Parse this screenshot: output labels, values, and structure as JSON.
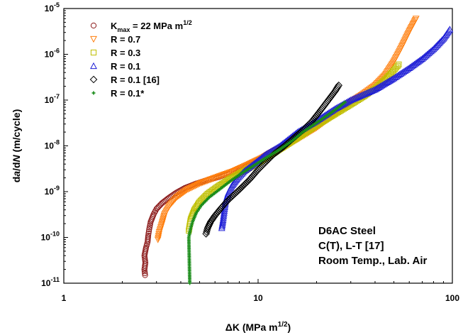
{
  "chart_data": {
    "type": "scatter",
    "x_scale": "log",
    "y_scale": "log",
    "xlim": [
      1,
      100
    ],
    "ylim": [
      1e-11,
      1e-05
    ],
    "grid": false,
    "legend_placement": "top-left",
    "xlabel": {
      "prefix": "ΔK (MPa m",
      "sup": "1/2",
      "suffix": ")"
    },
    "ylabel": {
      "parts": [
        {
          "t": "d",
          "i": false
        },
        {
          "t": "a",
          "i": true
        },
        {
          "t": "/d",
          "i": false
        },
        {
          "t": "N",
          "i": true
        },
        {
          "t": " (m/cycle)",
          "i": false
        }
      ]
    },
    "x_ticks": [
      {
        "value": 1,
        "label": "1"
      },
      {
        "value": 10,
        "label": "10"
      },
      {
        "value": 100,
        "label": "100"
      }
    ],
    "y_ticks": [
      {
        "value": 1e-11,
        "base": "10",
        "exp": "-11"
      },
      {
        "value": 1e-10,
        "base": "10",
        "exp": "-10"
      },
      {
        "value": 1e-09,
        "base": "10",
        "exp": "-9"
      },
      {
        "value": 1e-08,
        "base": "10",
        "exp": "-8"
      },
      {
        "value": 1e-07,
        "base": "10",
        "exp": "-7"
      },
      {
        "value": 1e-06,
        "base": "10",
        "exp": "-6"
      },
      {
        "value": 1e-05,
        "base": "10",
        "exp": "-5"
      }
    ],
    "annotation": [
      "D6AC Steel",
      "C(T), L-T [17]",
      "Room Temp., Lab. Air"
    ],
    "series": [
      {
        "name": "K_max = 22 MPa m^1/2",
        "label_main": "K",
        "label_sub": "max",
        "label_mid": " = 22 MPa m",
        "label_sup": "1/2",
        "marker": "circle",
        "color": "#8b1a1a",
        "points": [
          [
            2.62,
            1.5e-11
          ],
          [
            2.6,
            2e-11
          ],
          [
            2.63,
            2.8e-11
          ],
          [
            2.6,
            4e-11
          ],
          [
            2.65,
            6e-11
          ],
          [
            2.7,
            8e-11
          ],
          [
            2.72,
            1.1e-10
          ],
          [
            2.75,
            1.5e-10
          ],
          [
            2.8,
            2.2e-10
          ],
          [
            2.9,
            3.2e-10
          ],
          [
            3.0,
            4.2e-10
          ],
          [
            3.2,
            5.6e-10
          ],
          [
            3.5,
            7.5e-10
          ],
          [
            3.8,
            9.5e-10
          ],
          [
            4.2,
            1.2e-09
          ],
          [
            4.8,
            1.5e-09
          ],
          [
            5.5,
            1.8e-09
          ],
          [
            6.3,
            2.1e-09
          ],
          [
            7.2,
            2.6e-09
          ],
          [
            8.0,
            3e-09
          ],
          [
            9.0,
            4e-09
          ],
          [
            10.0,
            5e-09
          ],
          [
            11.0,
            6.5e-09
          ],
          [
            12.0,
            8e-09
          ],
          [
            13.5,
            1e-08
          ]
        ]
      },
      {
        "name": "R = 0.7",
        "label_main": "R = 0.7",
        "marker": "triangle-down",
        "color": "#ff7f0e",
        "points": [
          [
            3.05,
            9e-11
          ],
          [
            3.1,
            1.3e-10
          ],
          [
            3.2,
            2e-10
          ],
          [
            3.3,
            3.2e-10
          ],
          [
            3.5,
            5e-10
          ],
          [
            3.8,
            7.5e-10
          ],
          [
            4.3,
            1.1e-09
          ],
          [
            5.0,
            1.5e-09
          ],
          [
            6.0,
            2e-09
          ],
          [
            7.5,
            2.8e-09
          ],
          [
            9.0,
            4e-09
          ],
          [
            11.0,
            6e-09
          ],
          [
            13.0,
            8.5e-09
          ],
          [
            16.0,
            1.4e-08
          ],
          [
            20.0,
            2.5e-08
          ],
          [
            25.0,
            5e-08
          ],
          [
            30.0,
            9e-08
          ],
          [
            35.0,
            1.4e-07
          ],
          [
            40.0,
            2.1e-07
          ],
          [
            45.0,
            3.5e-07
          ],
          [
            50.0,
            7e-07
          ],
          [
            55.0,
            1.5e-06
          ],
          [
            60.0,
            3.2e-06
          ],
          [
            65.0,
            6e-06
          ]
        ]
      },
      {
        "name": "R = 0.3",
        "label_main": "R = 0.3",
        "marker": "square",
        "color": "#bfbf00",
        "points": [
          [
            4.4,
            1.4e-10
          ],
          [
            4.5,
            2.5e-10
          ],
          [
            4.7,
            4e-10
          ],
          [
            5.0,
            6e-10
          ],
          [
            5.5,
            9e-10
          ],
          [
            6.2,
            1.3e-09
          ],
          [
            7.0,
            1.8e-09
          ],
          [
            8.0,
            2.5e-09
          ],
          [
            9.5,
            3.7e-09
          ],
          [
            11.0,
            5.5e-09
          ],
          [
            13.0,
            8.5e-09
          ],
          [
            16.0,
            1.5e-08
          ],
          [
            20.0,
            2.8e-08
          ],
          [
            25.0,
            5e-08
          ],
          [
            30.0,
            8e-08
          ],
          [
            35.0,
            1.2e-07
          ],
          [
            40.0,
            1.8e-07
          ],
          [
            45.0,
            2.8e-07
          ],
          [
            50.0,
            4.5e-07
          ],
          [
            53.0,
            6e-07
          ]
        ]
      },
      {
        "name": "R = 0.1",
        "label_main": "R = 0.1",
        "marker": "triangle-up",
        "color": "#1f1fd6",
        "points": [
          [
            6.5,
            1.6e-10
          ],
          [
            6.6,
            2.4e-10
          ],
          [
            6.7,
            3.8e-10
          ],
          [
            6.8,
            6e-10
          ],
          [
            7.0,
            9e-10
          ],
          [
            7.3,
            1.3e-09
          ],
          [
            7.8,
            1.9e-09
          ],
          [
            8.5,
            2.8e-09
          ],
          [
            9.5,
            4e-09
          ],
          [
            11.0,
            6.5e-09
          ],
          [
            13.0,
            1e-08
          ],
          [
            16.0,
            2e-08
          ],
          [
            20.0,
            3.5e-08
          ],
          [
            25.0,
            6.5e-08
          ],
          [
            30.0,
            1e-07
          ],
          [
            40.0,
            1.7e-07
          ],
          [
            50.0,
            3e-07
          ],
          [
            60.0,
            5e-07
          ],
          [
            70.0,
            8e-07
          ],
          [
            80.0,
            1.3e-06
          ],
          [
            90.0,
            2.2e-06
          ],
          [
            97.0,
            3.5e-06
          ]
        ]
      },
      {
        "name": "R = 0.1 [16]",
        "label_main": "R = 0.1 [16]",
        "marker": "diamond",
        "color": "#000000",
        "points": [
          [
            5.4,
            1.2e-10
          ],
          [
            5.5,
            1.6e-10
          ],
          [
            5.7,
            2.2e-10
          ],
          [
            6.0,
            3e-10
          ],
          [
            6.4,
            4.2e-10
          ],
          [
            7.0,
            6.5e-10
          ],
          [
            8.0,
            1.1e-09
          ],
          [
            9.0,
            1.8e-09
          ],
          [
            10.0,
            3e-09
          ],
          [
            11.0,
            4.5e-09
          ],
          [
            12.0,
            6.5e-09
          ],
          [
            13.5,
            9.5e-09
          ],
          [
            15.0,
            1.4e-08
          ],
          [
            17.0,
            2.2e-08
          ],
          [
            19.0,
            3.5e-08
          ],
          [
            21.0,
            6e-08
          ],
          [
            23.0,
            1e-07
          ],
          [
            25.0,
            1.6e-07
          ],
          [
            26.0,
            2.1e-07
          ]
        ]
      },
      {
        "name": "R = 0.1*",
        "label_main": "R = 0.1*",
        "marker": "plus",
        "color": "#1a8c1a",
        "points": [
          [
            4.45,
            1e-11
          ],
          [
            4.4,
            1e-10
          ],
          [
            4.5,
            1.6e-10
          ],
          [
            4.6,
            2.2e-10
          ],
          [
            4.8,
            3.4e-10
          ],
          [
            5.1,
            5e-10
          ],
          [
            5.6,
            7.5e-10
          ],
          [
            6.3,
            1.1e-09
          ],
          [
            7.2,
            1.7e-09
          ],
          [
            8.2,
            2.5e-09
          ],
          [
            9.5,
            3.7e-09
          ],
          [
            11.0,
            5.5e-09
          ],
          [
            13.0,
            8.5e-09
          ],
          [
            15.0,
            1.3e-08
          ],
          [
            17.0,
            2e-08
          ],
          [
            20.0,
            3.2e-08
          ],
          [
            23.0,
            4.8e-08
          ],
          [
            26.0,
            7e-08
          ],
          [
            28.0,
            9e-08
          ]
        ]
      }
    ]
  }
}
